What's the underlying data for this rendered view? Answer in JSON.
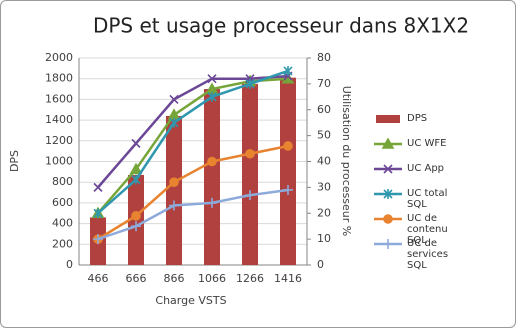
{
  "chart_data": {
    "type": "bar",
    "title": "DPS et usage processeur dans 8X1X2",
    "x_label": "Charge VSTS",
    "y_label": "DPS",
    "y2_label": "Utilisation du processeur %",
    "categories": [
      "466",
      "666",
      "866",
      "1066",
      "1266",
      "1416"
    ],
    "ylim": [
      0,
      2000
    ],
    "yticks": [
      0,
      200,
      400,
      600,
      800,
      1000,
      1200,
      1400,
      1600,
      1800,
      2000
    ],
    "y2lim": [
      0,
      80
    ],
    "y2ticks": [
      0,
      10,
      20,
      30,
      40,
      50,
      60,
      70,
      80
    ],
    "grid": true,
    "legend": "right",
    "series": [
      {
        "name": "DPS",
        "type": "bar",
        "color": "#b0413e",
        "values": [
          460,
          870,
          1440,
          1700,
          1750,
          1810
        ]
      },
      {
        "name": "UC WFE",
        "type": "line",
        "axis": "y2",
        "marker": "triangle",
        "color": "#77a53a",
        "values": [
          20,
          37,
          58,
          68,
          71,
          72
        ]
      },
      {
        "name": "UC App",
        "type": "line",
        "axis": "y2",
        "marker": "x",
        "color": "#6b4796",
        "values": [
          30,
          47,
          64,
          72,
          72,
          73
        ]
      },
      {
        "name": "UC total SQL",
        "type": "line",
        "axis": "y2",
        "marker": "star",
        "color": "#2f97ae",
        "values": [
          20,
          33,
          55,
          65,
          70,
          75
        ]
      },
      {
        "name": "UC de contenu SQL",
        "type": "line",
        "axis": "y2",
        "marker": "circle",
        "color": "#e8832f",
        "values": [
          10,
          19,
          32,
          40,
          43,
          46
        ]
      },
      {
        "name": "UC de services SQL",
        "type": "line",
        "axis": "y2",
        "marker": "plus",
        "color": "#8eaadb",
        "values": [
          10,
          15,
          23,
          24,
          27,
          29
        ]
      }
    ]
  }
}
